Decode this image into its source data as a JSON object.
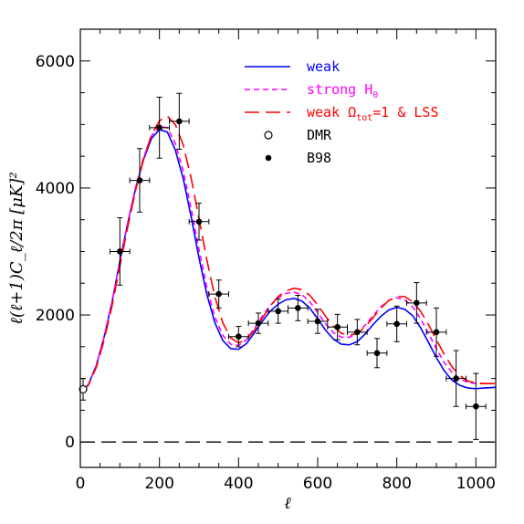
{
  "chart_data": {
    "type": "line",
    "xlabel": "ℓ",
    "ylabel": "ℓ(ℓ+1)C_ℓ/2π  [μK]²",
    "xlim": [
      0,
      1050
    ],
    "ylim": [
      -400,
      6500
    ],
    "x_ticks": [
      0,
      200,
      400,
      600,
      800,
      1000
    ],
    "y_ticks": [
      0,
      2000,
      4000,
      6000
    ],
    "grid": false,
    "legend_position": "top-right",
    "series": [
      {
        "name": "weak",
        "style": "solid",
        "color": "#0000ff",
        "x": [
          0,
          10,
          20,
          40,
          60,
          80,
          100,
          120,
          140,
          160,
          180,
          200,
          220,
          240,
          260,
          280,
          300,
          320,
          340,
          360,
          380,
          400,
          420,
          440,
          460,
          480,
          500,
          520,
          540,
          560,
          580,
          600,
          620,
          640,
          660,
          680,
          700,
          720,
          740,
          760,
          780,
          800,
          820,
          840,
          860,
          880,
          900,
          920,
          940,
          960,
          980,
          1000,
          1020,
          1050
        ],
        "y": [
          820,
          840,
          900,
          1200,
          1650,
          2200,
          2850,
          3450,
          4000,
          4450,
          4780,
          4920,
          4880,
          4600,
          4150,
          3550,
          2900,
          2320,
          1880,
          1600,
          1470,
          1460,
          1550,
          1720,
          1900,
          2060,
          2170,
          2240,
          2260,
          2220,
          2110,
          1940,
          1760,
          1620,
          1540,
          1530,
          1580,
          1700,
          1850,
          1980,
          2080,
          2120,
          2090,
          1990,
          1800,
          1570,
          1330,
          1120,
          970,
          890,
          850,
          840,
          850,
          860
        ]
      },
      {
        "name": "strong H",
        "name_subscript": "0",
        "style": "short-dash",
        "color": "#ff00ff",
        "x": [
          0,
          10,
          20,
          40,
          60,
          80,
          100,
          120,
          140,
          160,
          180,
          200,
          220,
          240,
          260,
          280,
          300,
          320,
          340,
          360,
          380,
          400,
          420,
          440,
          460,
          480,
          500,
          520,
          540,
          560,
          580,
          600,
          620,
          640,
          660,
          680,
          700,
          720,
          740,
          760,
          780,
          800,
          820,
          840,
          860,
          880,
          900,
          920,
          940,
          960,
          980,
          1000,
          1020,
          1050
        ],
        "y": [
          820,
          840,
          900,
          1200,
          1650,
          2200,
          2850,
          3460,
          4020,
          4480,
          4820,
          4970,
          4950,
          4700,
          4270,
          3680,
          3030,
          2430,
          1970,
          1680,
          1540,
          1520,
          1610,
          1790,
          1980,
          2150,
          2270,
          2340,
          2360,
          2320,
          2210,
          2040,
          1860,
          1720,
          1650,
          1650,
          1710,
          1840,
          1990,
          2130,
          2230,
          2270,
          2240,
          2130,
          1940,
          1710,
          1470,
          1250,
          1090,
          990,
          940,
          920,
          920,
          920
        ]
      },
      {
        "name": "weak Ω",
        "name_subscript": "tot",
        "name_suffix": "=1 & LSS",
        "style": "long-dash",
        "color": "#ff0000",
        "x": [
          0,
          10,
          20,
          40,
          60,
          80,
          100,
          120,
          140,
          160,
          180,
          200,
          220,
          240,
          260,
          280,
          300,
          320,
          340,
          360,
          380,
          400,
          420,
          440,
          460,
          480,
          500,
          520,
          540,
          560,
          580,
          600,
          620,
          640,
          660,
          680,
          700,
          720,
          740,
          760,
          780,
          800,
          820,
          840,
          860,
          880,
          900,
          920,
          940,
          960,
          980,
          1000,
          1020,
          1050
        ],
        "y": [
          820,
          840,
          890,
          1170,
          1600,
          2140,
          2770,
          3390,
          3970,
          4460,
          4840,
          5060,
          5130,
          5000,
          4680,
          4160,
          3520,
          2860,
          2290,
          1880,
          1640,
          1560,
          1610,
          1760,
          1950,
          2140,
          2290,
          2380,
          2420,
          2400,
          2310,
          2160,
          1980,
          1820,
          1710,
          1680,
          1710,
          1810,
          1960,
          2110,
          2230,
          2290,
          2290,
          2210,
          2060,
          1850,
          1610,
          1380,
          1180,
          1040,
          960,
          930,
          920,
          920
        ]
      }
    ],
    "points": [
      {
        "name": "DMR",
        "marker": "open-circle",
        "data": [
          {
            "x": 7,
            "y": 830,
            "xerr": 0,
            "yerr_low": 170,
            "yerr_high": 170
          }
        ]
      },
      {
        "name": "B98",
        "marker": "filled-circle",
        "data": [
          {
            "x": 100,
            "y": 3000,
            "xerr": 25,
            "yerr_low": 530,
            "yerr_high": 530
          },
          {
            "x": 150,
            "y": 4120,
            "xerr": 25,
            "yerr_low": 500,
            "yerr_high": 500
          },
          {
            "x": 200,
            "y": 4950,
            "xerr": 25,
            "yerr_low": 480,
            "yerr_high": 480
          },
          {
            "x": 250,
            "y": 5050,
            "xerr": 25,
            "yerr_low": 440,
            "yerr_high": 440
          },
          {
            "x": 300,
            "y": 3470,
            "xerr": 25,
            "yerr_low": 290,
            "yerr_high": 290
          },
          {
            "x": 350,
            "y": 2330,
            "xerr": 25,
            "yerr_low": 220,
            "yerr_high": 220
          },
          {
            "x": 400,
            "y": 1660,
            "xerr": 25,
            "yerr_low": 160,
            "yerr_high": 160
          },
          {
            "x": 450,
            "y": 1870,
            "xerr": 25,
            "yerr_low": 160,
            "yerr_high": 160
          },
          {
            "x": 500,
            "y": 2060,
            "xerr": 25,
            "yerr_low": 190,
            "yerr_high": 190
          },
          {
            "x": 550,
            "y": 2110,
            "xerr": 25,
            "yerr_low": 200,
            "yerr_high": 200
          },
          {
            "x": 600,
            "y": 1900,
            "xerr": 25,
            "yerr_low": 190,
            "yerr_high": 190
          },
          {
            "x": 650,
            "y": 1810,
            "xerr": 25,
            "yerr_low": 200,
            "yerr_high": 200
          },
          {
            "x": 700,
            "y": 1730,
            "xerr": 25,
            "yerr_low": 200,
            "yerr_high": 200
          },
          {
            "x": 750,
            "y": 1400,
            "xerr": 25,
            "yerr_low": 230,
            "yerr_high": 230
          },
          {
            "x": 800,
            "y": 1860,
            "xerr": 25,
            "yerr_low": 280,
            "yerr_high": 280
          },
          {
            "x": 850,
            "y": 2190,
            "xerr": 25,
            "yerr_low": 320,
            "yerr_high": 320
          },
          {
            "x": 900,
            "y": 1730,
            "xerr": 25,
            "yerr_low": 380,
            "yerr_high": 380
          },
          {
            "x": 950,
            "y": 1000,
            "xerr": 25,
            "yerr_low": 440,
            "yerr_high": 440
          },
          {
            "x": 1000,
            "y": 560,
            "xerr": 25,
            "yerr_low": 520,
            "yerr_high": 520
          }
        ]
      }
    ],
    "reference_line": {
      "y": 0,
      "style": "long-dash"
    }
  }
}
